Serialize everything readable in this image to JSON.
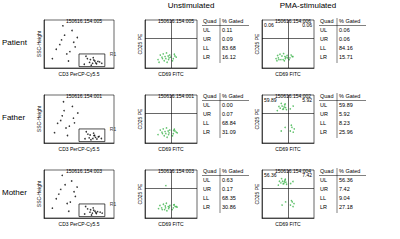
{
  "column_titles": [
    "Unstimulated",
    "PMA-stimulated"
  ],
  "chart_data": [
    {
      "type": "scatter",
      "row_label": "Patient",
      "title": "150616.154.005",
      "x_label": "CD3 PerCP-Cy5.5",
      "y_label": "SSC-Height",
      "log": "x",
      "tick_labels": false,
      "grid": false,
      "color": "#000000",
      "xlim": [
        1,
        10000
      ],
      "ylim": [
        0,
        1024
      ],
      "x": [
        200,
        400,
        600,
        800,
        1000,
        1500,
        300,
        500,
        700,
        900,
        1200,
        2000,
        250,
        450,
        650,
        5,
        10,
        20,
        40,
        3,
        8,
        15,
        30,
        60,
        80,
        12,
        25,
        50
      ],
      "y": [
        80,
        120,
        100,
        150,
        90,
        130,
        200,
        60,
        170,
        110,
        140,
        100,
        250,
        180,
        220,
        400,
        600,
        300,
        800,
        200,
        500,
        700,
        350,
        450,
        650,
        900,
        150,
        550
      ],
      "gate": {
        "label": "R1",
        "x": [
          100,
          3000
        ],
        "y": [
          30,
          300
        ]
      }
    },
    {
      "type": "scatter",
      "title": "150616.154.005",
      "x_label": "CD69 FITC",
      "y_label": "CD25 PE",
      "log": true,
      "tick_labels": false,
      "grid": false,
      "color": "#3cb44b",
      "xlim": [
        1,
        10000
      ],
      "ylim": [
        1,
        10000
      ],
      "gate_x": 100,
      "gate_y": 300,
      "x": [
        10,
        20,
        30,
        15,
        40,
        60,
        25,
        50,
        70,
        35,
        80,
        12,
        45,
        65,
        90,
        22,
        150,
        200,
        130,
        250,
        180
      ],
      "y": [
        5,
        8,
        4,
        12,
        6,
        10,
        15,
        3,
        7,
        9,
        12,
        3,
        18,
        5,
        8,
        6,
        6,
        10,
        4,
        8,
        14
      ],
      "table": {
        "header": [
          "Quad",
          "% Gated"
        ],
        "rows": [
          [
            "UL",
            "0.11"
          ],
          [
            "UR",
            "0.09"
          ],
          [
            "LL",
            "83.68"
          ],
          [
            "LR",
            "16.12"
          ]
        ]
      }
    },
    {
      "type": "scatter",
      "title": "150616.154.006",
      "x_label": "CD69 FITC",
      "y_label": "CD25 PE",
      "log": true,
      "tick_labels": false,
      "grid": false,
      "color": "#3cb44b",
      "xlim": [
        1,
        10000
      ],
      "ylim": [
        1,
        10000
      ],
      "gate_x": 100,
      "gate_y": 300,
      "x": [
        12,
        18,
        28,
        16,
        42,
        58,
        24,
        52,
        68,
        34,
        85,
        14,
        46,
        62,
        88,
        20,
        140,
        210,
        125,
        240,
        175
      ],
      "y": [
        6,
        7,
        5,
        11,
        5,
        9,
        14,
        4,
        8,
        10,
        11,
        4,
        16,
        6,
        7,
        5,
        7,
        9,
        5,
        9,
        12
      ],
      "corner_labels": {
        "UL": "0.06",
        "UR": "0.06"
      },
      "table": {
        "header": [
          "Quad",
          "% Gated"
        ],
        "rows": [
          [
            "UL",
            "0.06"
          ],
          [
            "UR",
            "0.06"
          ],
          [
            "LL",
            "84.16"
          ],
          [
            "LR",
            "15.71"
          ]
        ]
      }
    },
    {
      "type": "scatter",
      "row_label": "Father",
      "title": "150616.154.001",
      "x_label": "CD3 PerCP-Cy5.5",
      "y_label": "SSC-Height",
      "log": "x",
      "tick_labels": false,
      "grid": false,
      "color": "#000000",
      "xlim": [
        1,
        10000
      ],
      "ylim": [
        0,
        1024
      ],
      "x": [
        220,
        380,
        620,
        780,
        1050,
        1400,
        320,
        480,
        720,
        880,
        1250,
        1900,
        260,
        430,
        680,
        6,
        11,
        18,
        42,
        4,
        9,
        14,
        28,
        55,
        85,
        13,
        22,
        48
      ],
      "y": [
        90,
        110,
        95,
        160,
        85,
        140,
        190,
        70,
        160,
        120,
        130,
        95,
        240,
        170,
        210,
        420,
        580,
        320,
        780,
        220,
        480,
        690,
        360,
        430,
        640,
        880,
        160,
        530
      ],
      "gate": {
        "label": "R1",
        "x": [
          100,
          3000
        ],
        "y": [
          30,
          300
        ]
      }
    },
    {
      "type": "scatter",
      "title": "150616.154.001",
      "x_label": "CD69 FITC",
      "y_label": "CD25 PE",
      "log": true,
      "tick_labels": false,
      "grid": false,
      "color": "#3cb44b",
      "xlim": [
        1,
        10000
      ],
      "ylim": [
        1,
        10000
      ],
      "gate_x": 100,
      "gate_y": 300,
      "x": [
        10,
        20,
        30,
        15,
        40,
        60,
        25,
        50,
        70,
        35,
        80,
        45,
        65,
        22,
        150,
        200,
        130,
        250,
        180,
        300,
        160
      ],
      "y": [
        5,
        8,
        4,
        12,
        6,
        10,
        15,
        3,
        7,
        9,
        12,
        18,
        5,
        6,
        6,
        10,
        4,
        8,
        14,
        7,
        11
      ],
      "table": {
        "header": [
          "Quad",
          "% Gated"
        ],
        "rows": [
          [
            "UL",
            "0.00"
          ],
          [
            "UR",
            "0.07"
          ],
          [
            "LL",
            "68.84"
          ],
          [
            "LR",
            "31.09"
          ]
        ]
      }
    },
    {
      "type": "scatter",
      "title": "150616.154.002",
      "x_label": "CD69 FITC",
      "y_label": "CD25 PE",
      "log": true,
      "tick_labels": false,
      "grid": false,
      "color": "#3cb44b",
      "xlim": [
        1,
        10000
      ],
      "ylim": [
        1,
        10000
      ],
      "gate_x": 100,
      "gate_y": 300,
      "x": [
        15,
        25,
        35,
        45,
        55,
        65,
        75,
        30,
        50,
        20,
        60,
        40,
        150,
        250,
        30,
        60,
        150,
        200,
        250,
        180,
        300
      ],
      "y": [
        500,
        800,
        1200,
        700,
        1500,
        900,
        600,
        2000,
        1000,
        1100,
        1800,
        650,
        700,
        1200,
        10,
        20,
        10,
        20,
        8,
        30,
        15
      ],
      "corner_labels": {
        "UL": "59.89",
        "UR": "5.92"
      },
      "table": {
        "header": [
          "Quad",
          "% Gated"
        ],
        "rows": [
          [
            "UL",
            "59.89"
          ],
          [
            "UR",
            "5.92"
          ],
          [
            "LL",
            "8.23"
          ],
          [
            "LR",
            "25.96"
          ]
        ]
      }
    },
    {
      "type": "scatter",
      "row_label": "Mother",
      "title": "150616.154.003",
      "x_label": "CD3 PerCP-Cy5.5",
      "y_label": "SSC-Height",
      "log": "x",
      "tick_labels": false,
      "grid": false,
      "color": "#000000",
      "xlim": [
        1,
        10000
      ],
      "ylim": [
        0,
        1024
      ],
      "x": [
        210,
        420,
        580,
        820,
        980,
        1600,
        310,
        520,
        690,
        920,
        1150,
        2100,
        240,
        460,
        640,
        5,
        9,
        21,
        38,
        3,
        7,
        16,
        32,
        62,
        78,
        11,
        26,
        52
      ],
      "y": [
        85,
        125,
        105,
        145,
        95,
        125,
        195,
        65,
        165,
        115,
        135,
        105,
        245,
        175,
        215,
        410,
        610,
        310,
        790,
        210,
        510,
        710,
        340,
        460,
        660,
        910,
        145,
        560
      ],
      "gate": {
        "label": "R1",
        "x": [
          100,
          3000
        ],
        "y": [
          30,
          300
        ]
      }
    },
    {
      "type": "scatter",
      "title": "150616.154.003",
      "x_label": "CD69 FITC",
      "y_label": "CD25 PE",
      "log": true,
      "tick_labels": false,
      "grid": false,
      "color": "#3cb44b",
      "xlim": [
        1,
        10000
      ],
      "ylim": [
        1,
        10000
      ],
      "gate_x": 100,
      "gate_y": 300,
      "x": [
        11,
        19,
        32,
        14,
        38,
        62,
        26,
        48,
        72,
        36,
        82,
        44,
        66,
        21,
        40,
        150,
        210,
        125,
        260,
        175,
        290,
        165
      ],
      "y": [
        6,
        7,
        5,
        11,
        7,
        9,
        14,
        4,
        8,
        10,
        11,
        17,
        6,
        5,
        500,
        7,
        9,
        5,
        9,
        13,
        8,
        12
      ],
      "table": {
        "header": [
          "Quad",
          "% Gated"
        ],
        "rows": [
          [
            "UL",
            "0.63"
          ],
          [
            "UR",
            "0.17"
          ],
          [
            "LL",
            "68.35"
          ],
          [
            "LR",
            "30.86"
          ]
        ]
      }
    },
    {
      "type": "scatter",
      "title": "150616.154.004",
      "x_label": "CD69 FITC",
      "y_label": "CD25 PE",
      "log": true,
      "tick_labels": false,
      "grid": false,
      "color": "#3cb44b",
      "xlim": [
        1,
        10000
      ],
      "ylim": [
        1,
        10000
      ],
      "gate_x": 100,
      "gate_y": 300,
      "x": [
        18,
        28,
        38,
        48,
        58,
        68,
        78,
        32,
        52,
        22,
        62,
        42,
        160,
        240,
        35,
        65,
        155,
        210,
        245,
        185,
        290
      ],
      "y": [
        550,
        850,
        1150,
        750,
        1400,
        950,
        650,
        1900,
        1050,
        1150,
        1700,
        700,
        750,
        1100,
        12,
        22,
        12,
        22,
        9,
        28,
        16
      ],
      "corner_labels": {
        "UL": "56.36",
        "UR": "7.42"
      },
      "table": {
        "header": [
          "Quad",
          "% Gated"
        ],
        "rows": [
          [
            "UL",
            "56.36"
          ],
          [
            "UR",
            "7.42"
          ],
          [
            "LL",
            "9.04"
          ],
          [
            "LR",
            "27.18"
          ]
        ]
      }
    }
  ]
}
